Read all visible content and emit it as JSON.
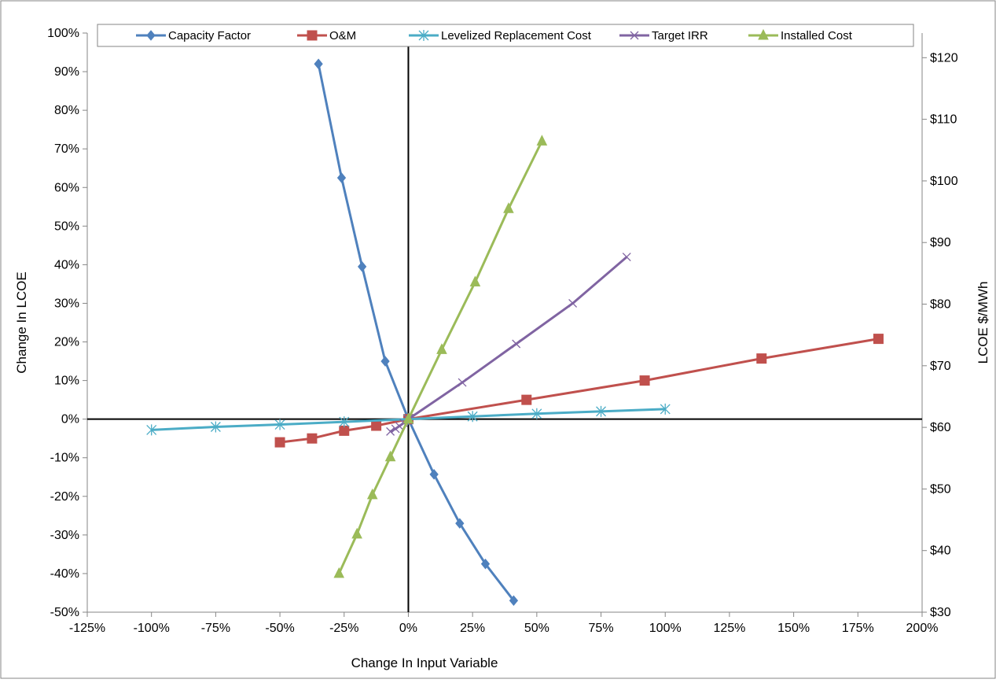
{
  "chart_data": {
    "type": "line",
    "xlabel": "Change In Input Variable",
    "ylabel": "Change In LCOE",
    "y2label": "LCOE $/MWh",
    "xlim": [
      -1.25,
      2.0
    ],
    "ylim": [
      -0.5,
      1.0
    ],
    "y2lim": [
      30,
      124
    ],
    "x_ticks": [
      -1.25,
      -1.0,
      -0.75,
      -0.5,
      -0.25,
      0,
      0.25,
      0.5,
      0.75,
      1.0,
      1.25,
      1.5,
      1.75,
      2.0
    ],
    "x_tick_labels": [
      "-125%",
      "-100%",
      "-75%",
      "-50%",
      "-25%",
      "0%",
      "25%",
      "50%",
      "75%",
      "100%",
      "125%",
      "150%",
      "175%",
      "200%"
    ],
    "y_ticks": [
      -0.5,
      -0.4,
      -0.3,
      -0.2,
      -0.1,
      0,
      0.1,
      0.2,
      0.3,
      0.4,
      0.5,
      0.6,
      0.7,
      0.8,
      0.9,
      1.0
    ],
    "y_tick_labels": [
      "-50%",
      "-40%",
      "-30%",
      "-20%",
      "-10%",
      "0%",
      "10%",
      "20%",
      "30%",
      "40%",
      "50%",
      "60%",
      "70%",
      "80%",
      "90%",
      "100%"
    ],
    "y2_ticks": [
      30,
      40,
      50,
      60,
      70,
      80,
      90,
      100,
      110,
      120
    ],
    "y2_tick_labels": [
      "$30",
      "$40",
      "$50",
      "$60",
      "$70",
      "$80",
      "$90",
      "$100",
      "$110",
      "$120"
    ],
    "grid": false,
    "legend_position": "top",
    "series": [
      {
        "name": "Capacity Factor",
        "color": "#4F81BD",
        "marker": "diamond",
        "x": [
          -0.35,
          -0.26,
          -0.18,
          -0.09,
          0,
          0.1,
          0.2,
          0.3,
          0.41
        ],
        "y": [
          0.92,
          0.625,
          0.395,
          0.15,
          0,
          -0.143,
          -0.27,
          -0.375,
          -0.47
        ]
      },
      {
        "name": "O&M",
        "color": "#C0504D",
        "marker": "square",
        "x": [
          -0.5,
          -0.375,
          -0.25,
          -0.125,
          0,
          0.46,
          0.92,
          1.375,
          1.83
        ],
        "y": [
          -0.06,
          -0.05,
          -0.03,
          -0.017,
          0,
          0.05,
          0.1,
          0.157,
          0.208
        ]
      },
      {
        "name": "Levelized Replacement Cost",
        "color": "#4BACC6",
        "marker": "asterisk",
        "x": [
          -1.0,
          -0.75,
          -0.5,
          -0.25,
          0,
          0.25,
          0.5,
          0.75,
          1.0
        ],
        "y": [
          -0.028,
          -0.02,
          -0.014,
          -0.007,
          0,
          0.007,
          0.014,
          0.02,
          0.026
        ]
      },
      {
        "name": "Target IRR",
        "color": "#8064A2",
        "marker": "x",
        "x": [
          -0.07,
          -0.05,
          -0.035,
          -0.018,
          0,
          0.21,
          0.42,
          0.64,
          0.85
        ],
        "y": [
          -0.032,
          -0.025,
          -0.018,
          -0.01,
          0,
          0.095,
          0.195,
          0.3,
          0.42
        ]
      },
      {
        "name": "Installed Cost",
        "color": "#9BBB59",
        "marker": "triangle",
        "x": [
          -0.27,
          -0.2,
          -0.14,
          -0.07,
          0,
          0.13,
          0.26,
          0.39,
          0.52
        ],
        "y": [
          -0.4,
          -0.298,
          -0.196,
          -0.098,
          0,
          0.18,
          0.355,
          0.545,
          0.72
        ]
      }
    ]
  }
}
